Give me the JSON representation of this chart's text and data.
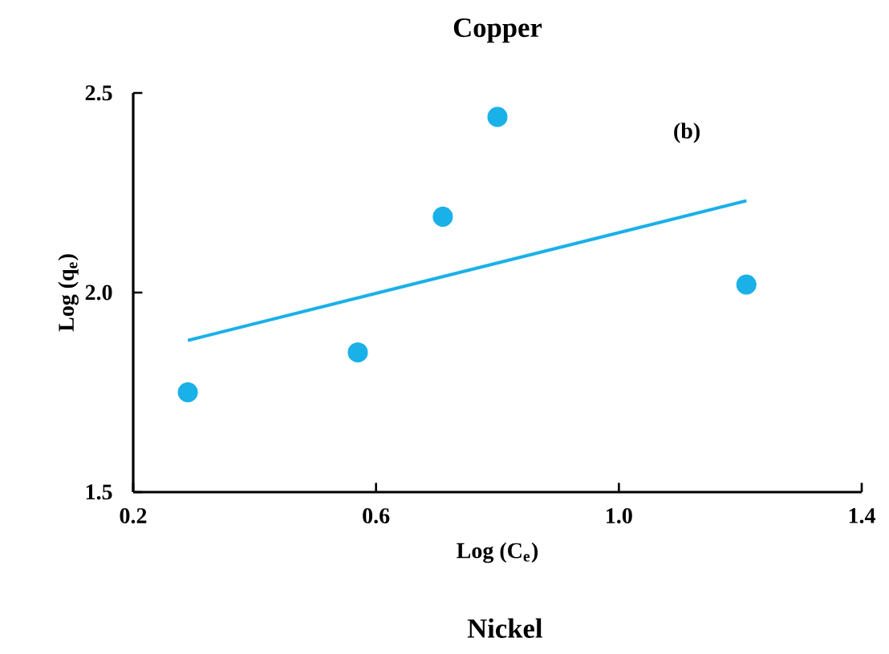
{
  "chart_data": {
    "type": "scatter",
    "title": "Copper",
    "xlabel": "Log (C$_{e}$)",
    "ylabel": "Log (q$_{e}$)",
    "series": [
      {
        "color": "#1ab0e8",
        "x": [
          0.29,
          0.57,
          0.71,
          0.8,
          1.21
        ],
        "values": [
          1.75,
          1.85,
          2.19,
          2.44,
          2.02
        ],
        "marker": "circle"
      },
      {
        "type": "line",
        "color": "#1ab0e8",
        "x": [
          0.29,
          1.21
        ],
        "values": [
          1.88,
          2.23
        ],
        "marker": "none",
        "line_style": "solid"
      }
    ],
    "xlim": [
      0.2,
      1.4
    ],
    "xticks": [
      0.2,
      0.6,
      {
        "value": 1.0,
        "label": "1.0"
      },
      1.4
    ],
    "ylim": [
      1.5,
      2.5
    ],
    "yticks": [
      1.5,
      {
        "value": 2.0,
        "label": "2.0"
      },
      2.5
    ],
    "grid": false,
    "annotations": [
      "(b)",
      "Nickel"
    ]
  }
}
